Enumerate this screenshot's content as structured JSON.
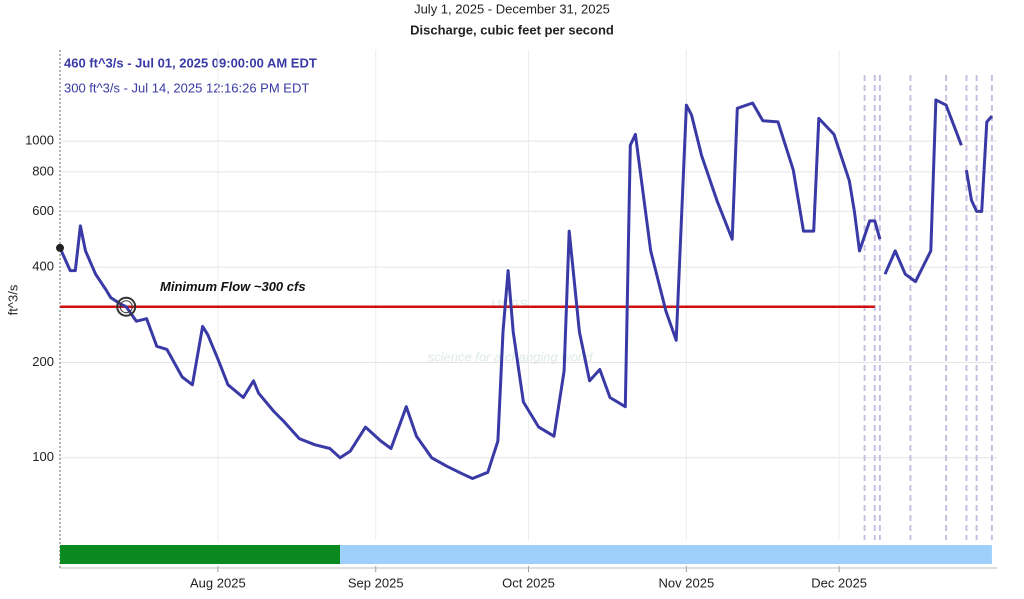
{
  "chart_data": {
    "type": "line",
    "title": "July 1, 2025 - December 31, 2025",
    "subtitle": "Discharge, cubic feet per second",
    "header_lines": [
      "460 ft^3/s - Jul 01, 2025 09:00:00 AM EDT",
      "300 ft^3/s - Jul 14, 2025 12:16:26 PM EDT"
    ],
    "y_label": "ft^3/s",
    "watermark": [
      "USGS",
      "science for a changing world"
    ],
    "log_scale": true,
    "grid": true,
    "xlim": [
      "2025-07-01",
      "2025-12-31"
    ],
    "ylim": [
      55,
      1940
    ],
    "yticks": [
      100,
      200,
      400,
      600,
      800,
      1000
    ],
    "xticks": [
      {
        "value": "2025-08-01",
        "label": "Aug 2025"
      },
      {
        "value": "2025-09-01",
        "label": "Sep 2025"
      },
      {
        "value": "2025-10-01",
        "label": "Oct 2025"
      },
      {
        "value": "2025-11-01",
        "label": "Nov 2025"
      },
      {
        "value": "2025-12-01",
        "label": "Dec 2025"
      }
    ],
    "x": [
      "2025-07-01",
      "2025-07-03",
      "2025-07-04",
      "2025-07-05",
      "2025-07-06",
      "2025-07-08",
      "2025-07-10",
      "2025-07-11",
      "2025-07-13",
      "2025-07-14",
      "2025-07-16",
      "2025-07-18",
      "2025-07-20",
      "2025-07-22",
      "2025-07-25",
      "2025-07-27",
      "2025-07-29",
      "2025-07-30",
      "2025-08-01",
      "2025-08-03",
      "2025-08-06",
      "2025-08-08",
      "2025-08-09",
      "2025-08-12",
      "2025-08-14",
      "2025-08-17",
      "2025-08-20",
      "2025-08-23",
      "2025-08-25",
      "2025-08-27",
      "2025-08-30",
      "2025-09-02",
      "2025-09-04",
      "2025-09-07",
      "2025-09-09",
      "2025-09-12",
      "2025-09-15",
      "2025-09-18",
      "2025-09-20",
      "2025-09-23",
      "2025-09-25",
      "2025-09-26",
      "2025-09-27",
      "2025-09-28",
      "2025-09-30",
      "2025-10-03",
      "2025-10-06",
      "2025-10-08",
      "2025-10-09",
      "2025-10-11",
      "2025-10-13",
      "2025-10-15",
      "2025-10-17",
      "2025-10-20",
      "2025-10-21",
      "2025-10-22",
      "2025-10-25",
      "2025-10-28",
      "2025-10-30",
      "2025-11-01",
      "2025-11-02",
      "2025-11-04",
      "2025-11-07",
      "2025-11-10",
      "2025-11-11",
      "2025-11-14",
      "2025-11-16",
      "2025-11-19",
      "2025-11-22",
      "2025-11-24",
      "2025-11-26",
      "2025-11-27",
      "2025-11-30",
      "2025-12-03",
      "2025-12-04",
      "2025-12-05",
      "2025-12-07",
      "2025-12-08",
      "2025-12-09",
      "2025-12-09",
      "2025-12-10",
      "2025-12-12",
      "2025-12-14",
      "2025-12-16",
      "2025-12-19",
      "2025-12-20",
      "2025-12-22",
      "2025-12-25",
      "2025-12-25",
      "2025-12-26",
      "2025-12-27",
      "2025-12-28",
      "2025-12-29",
      "2025-12-30",
      "2025-12-31"
    ],
    "series": [
      {
        "name": "Discharge",
        "color": "#3a3aa6",
        "values": [
          460,
          390,
          390,
          540,
          450,
          380,
          340,
          320,
          305,
          300,
          270,
          275,
          225,
          220,
          180,
          170,
          260,
          245,
          205,
          170,
          155,
          175,
          160,
          140,
          130,
          115,
          110,
          107,
          100,
          105,
          125,
          113,
          107,
          145,
          117,
          100,
          94,
          89,
          86,
          90,
          113,
          250,
          390,
          250,
          150,
          125,
          117,
          188,
          520,
          250,
          175,
          190,
          155,
          145,
          970,
          1050,
          450,
          290,
          235,
          1300,
          1210,
          900,
          650,
          490,
          1270,
          1320,
          1160,
          1150,
          810,
          520,
          520,
          1180,
          1050,
          750,
          600,
          450,
          560,
          560,
          490,
          null,
          380,
          450,
          380,
          360,
          450,
          1350,
          1300,
          970,
          null,
          810,
          650,
          600,
          600,
          1150,
          1200
        ]
      }
    ],
    "highlights": [
      {
        "x": "2025-07-01",
        "value": 460,
        "color": "#222222"
      },
      {
        "x": "2025-07-14",
        "value": 300,
        "color": "#333333"
      }
    ],
    "reference_line": {
      "value": 300,
      "color": "#cc1111",
      "label": "Minimum Flow ~300 cfs",
      "end": "2025-12-08"
    },
    "vertical_markers": [
      "2025-12-06",
      "2025-12-08",
      "2025-12-09",
      "2025-12-15",
      "2025-12-22",
      "2025-12-26",
      "2025-12-28",
      "2025-12-31"
    ],
    "status_bar": [
      {
        "start": "2025-07-01",
        "end": "2025-08-25",
        "color": "#0a8a1e"
      },
      {
        "start": "2025-08-25",
        "end": "2025-12-31",
        "color": "#9fd0fb"
      }
    ]
  }
}
